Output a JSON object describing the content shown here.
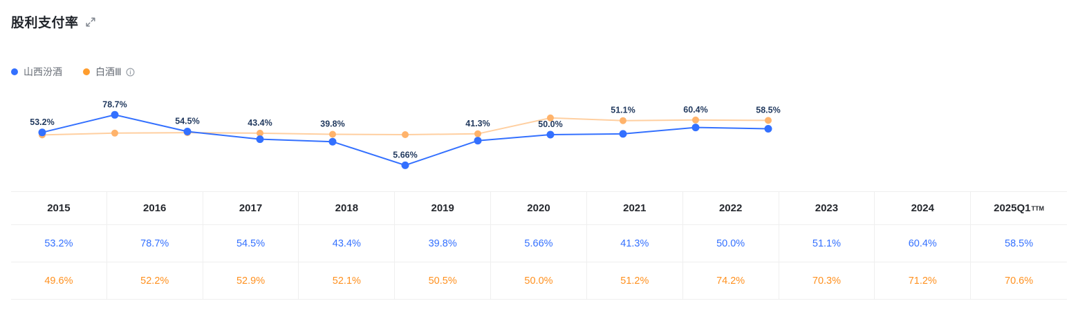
{
  "header": {
    "title": "股利支付率"
  },
  "icons": {
    "expand": "expand-arrows-icon",
    "info": "info-circle-icon"
  },
  "legend": {
    "series1": "山西汾酒",
    "series2": "白酒Ⅲ"
  },
  "colors": {
    "blue": "#3370FF",
    "orange_line": "#FFCFA0",
    "orange_dot": "#FFB36B",
    "orange_legend": "#FF9D2E",
    "orange_text": "#FF901E",
    "label": "#223A5F"
  },
  "chart_data": {
    "type": "line",
    "title": "股利支付率",
    "categories": [
      "2015",
      "2016",
      "2017",
      "2018",
      "2019",
      "2020",
      "2021",
      "2022",
      "2023",
      "2024",
      "2025Q1"
    ],
    "series": [
      {
        "name": "山西汾酒",
        "values": [
          53.2,
          78.7,
          54.5,
          43.4,
          39.8,
          5.66,
          41.3,
          50.0,
          51.1,
          60.4,
          58.5
        ],
        "labels": [
          "53.2%",
          "78.7%",
          "54.5%",
          "43.4%",
          "39.8%",
          "5.66%",
          "41.3%",
          "50.0%",
          "51.1%",
          "60.4%",
          "58.5%"
        ]
      },
      {
        "name": "白酒Ⅲ",
        "values": [
          49.6,
          52.2,
          52.9,
          52.1,
          50.5,
          50.0,
          51.2,
          74.2,
          70.3,
          71.2,
          70.6
        ]
      }
    ],
    "ylim": [
      0,
      90
    ],
    "grid": false,
    "legend_position": "top-left",
    "point_labels_series": "山西汾酒"
  },
  "table": {
    "years": [
      "2015",
      "2016",
      "2017",
      "2018",
      "2019",
      "2020",
      "2021",
      "2022",
      "2023",
      "2024",
      "2025Q1"
    ],
    "last_year_superscript": "TTM",
    "row_blue": [
      "53.2%",
      "78.7%",
      "54.5%",
      "43.4%",
      "39.8%",
      "5.66%",
      "41.3%",
      "50.0%",
      "51.1%",
      "60.4%",
      "58.5%"
    ],
    "row_orange": [
      "49.6%",
      "52.2%",
      "52.9%",
      "52.1%",
      "50.5%",
      "50.0%",
      "51.2%",
      "74.2%",
      "70.3%",
      "71.2%",
      "70.6%"
    ]
  }
}
